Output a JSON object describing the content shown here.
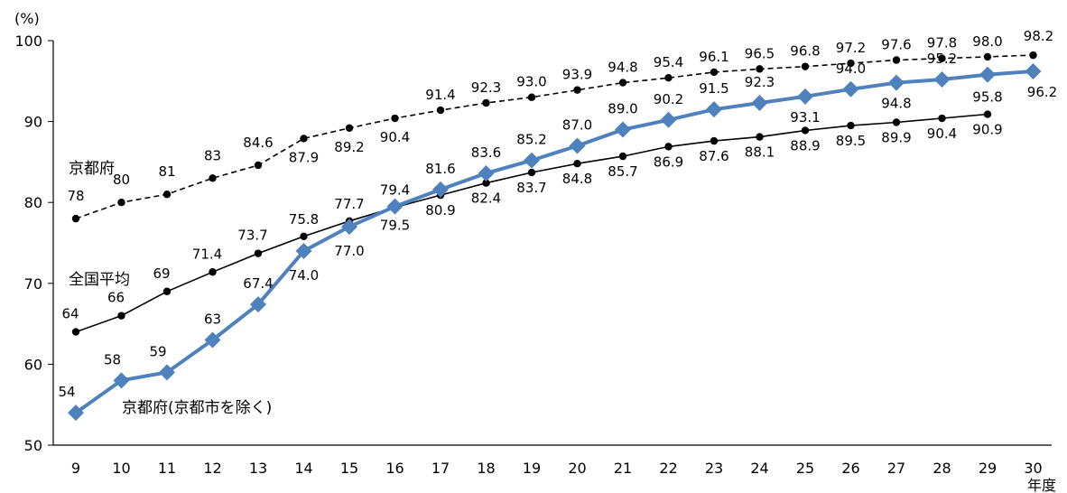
{
  "chart_data": {
    "type": "line",
    "title": "",
    "ylabel": "(%)",
    "xlabel": "年度",
    "x": [
      9,
      10,
      11,
      12,
      13,
      14,
      15,
      16,
      17,
      18,
      19,
      20,
      21,
      22,
      23,
      24,
      25,
      26,
      27,
      28,
      29,
      30
    ],
    "ylim": [
      50,
      100
    ],
    "yticks": [
      50,
      60,
      70,
      80,
      90,
      100
    ],
    "grid": false,
    "series": [
      {
        "name": "京都府",
        "color": "#000000",
        "style": "dashed",
        "marker": "circle",
        "values": [
          78,
          80,
          81,
          83,
          84.6,
          87.9,
          89.2,
          90.4,
          91.4,
          92.3,
          93.0,
          93.9,
          94.8,
          95.4,
          96.1,
          96.5,
          96.8,
          97.2,
          97.6,
          97.8,
          98.0,
          98.2
        ],
        "labels": [
          "78",
          "80",
          "81",
          "83",
          "84.6",
          "87.9",
          "89.2",
          "90.4",
          "91.4",
          "92.3",
          "93.0",
          "93.9",
          "94.8",
          "95.4",
          "96.1",
          "96.5",
          "96.8",
          "97.2",
          "97.6",
          "97.8",
          "98.0",
          "98.2"
        ]
      },
      {
        "name": "全国平均",
        "color": "#000000",
        "style": "solid",
        "marker": "circle",
        "values": [
          64,
          66,
          69,
          71.4,
          73.7,
          75.8,
          77.7,
          79.4,
          80.9,
          82.4,
          83.7,
          84.8,
          85.7,
          86.9,
          87.6,
          88.1,
          88.9,
          89.5,
          89.9,
          90.4,
          90.9,
          null
        ],
        "labels": [
          "64",
          "66",
          "69",
          "71.4",
          "73.7",
          "75.8",
          "77.7",
          "79.4",
          "80.9",
          "82.4",
          "83.7",
          "84.8",
          "85.7",
          "86.9",
          "87.6",
          "88.1",
          "88.9",
          "89.5",
          "89.9",
          "90.4",
          "90.9",
          null
        ]
      },
      {
        "name": "京都府(京都市を除く)",
        "color": "#4f81bd",
        "style": "solid",
        "marker": "diamond",
        "values": [
          54,
          58,
          59,
          63,
          67.4,
          74.0,
          77.0,
          79.5,
          81.6,
          83.6,
          85.2,
          87.0,
          89.0,
          90.2,
          91.5,
          92.3,
          93.1,
          94.0,
          94.8,
          95.2,
          95.8,
          96.2
        ],
        "labels": [
          "54",
          "58",
          "59",
          "63",
          "67.4",
          "74.0",
          "77.0",
          "79.5",
          "81.6",
          "83.6",
          "85.2",
          "87.0",
          "89.0",
          "90.2",
          "91.5",
          "92.3",
          "93.1",
          "94.0",
          "94.8",
          "95.2",
          "95.8",
          "96.2"
        ]
      }
    ]
  }
}
